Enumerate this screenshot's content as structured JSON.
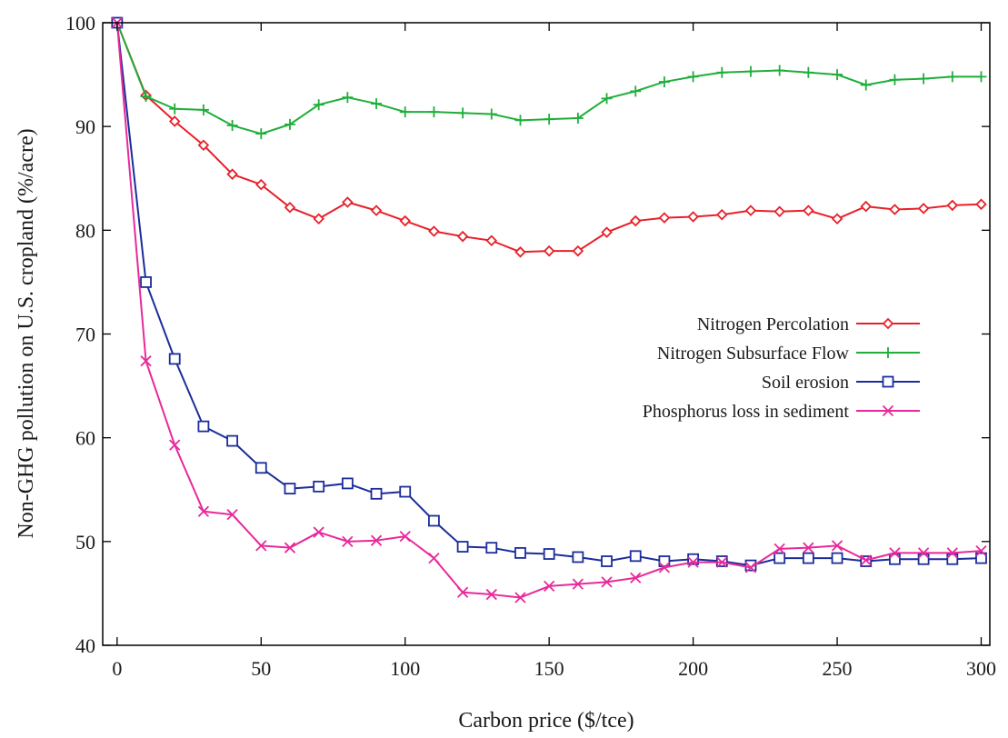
{
  "chart_data": {
    "type": "line",
    "title": "",
    "xlabel": "Carbon price ($/tce)",
    "ylabel": "Non-GHG pollution on U.S. cropland (%/acre)",
    "xlim": [
      -5,
      303
    ],
    "ylim": [
      40,
      100
    ],
    "xticks": [
      0,
      50,
      100,
      150,
      200,
      250,
      300
    ],
    "yticks": [
      40,
      50,
      60,
      70,
      80,
      90,
      100
    ],
    "grid": false,
    "legend_position": "right-middle",
    "x": [
      0,
      10,
      20,
      30,
      40,
      50,
      60,
      70,
      80,
      90,
      100,
      110,
      120,
      130,
      140,
      150,
      160,
      170,
      180,
      190,
      200,
      210,
      220,
      230,
      240,
      250,
      260,
      270,
      280,
      290,
      300
    ],
    "series": [
      {
        "name": "Nitrogen Percolation",
        "color": "#e8202a",
        "marker": "diamond",
        "values": [
          100,
          93.0,
          90.5,
          88.2,
          85.4,
          84.4,
          82.2,
          81.1,
          82.7,
          81.9,
          80.9,
          79.9,
          79.4,
          79.0,
          77.9,
          78.0,
          78.0,
          79.8,
          80.9,
          81.2,
          81.3,
          81.5,
          81.9,
          81.8,
          81.9,
          81.1,
          82.3,
          82.0,
          82.1,
          82.4,
          82.5
        ]
      },
      {
        "name": "Nitrogen Subsurface Flow",
        "color": "#1fae3a",
        "marker": "plus",
        "values": [
          100,
          92.9,
          91.7,
          91.6,
          90.1,
          89.3,
          90.2,
          92.1,
          92.8,
          92.2,
          91.4,
          91.4,
          91.3,
          91.2,
          90.6,
          90.7,
          90.8,
          92.7,
          93.4,
          94.3,
          94.8,
          95.2,
          95.3,
          95.4,
          95.2,
          95.0,
          94.0,
          94.5,
          94.6,
          94.8,
          94.8
        ]
      },
      {
        "name": "Soil erosion",
        "color": "#1b2d9a",
        "marker": "square",
        "values": [
          100,
          75.0,
          67.6,
          61.1,
          59.7,
          57.1,
          55.1,
          55.3,
          55.6,
          54.6,
          54.8,
          52.0,
          49.5,
          49.4,
          48.9,
          48.8,
          48.5,
          48.1,
          48.6,
          48.1,
          48.3,
          48.1,
          47.7,
          48.4,
          48.4,
          48.4,
          48.1,
          48.3,
          48.3,
          48.3,
          48.4
        ]
      },
      {
        "name": "Phosphorus loss in sediment",
        "color": "#e8299b",
        "marker": "x",
        "values": [
          100,
          67.4,
          59.3,
          52.9,
          52.6,
          49.6,
          49.4,
          50.9,
          50.0,
          50.1,
          50.5,
          48.4,
          45.1,
          44.9,
          44.6,
          45.7,
          45.9,
          46.1,
          46.5,
          47.5,
          48.0,
          48.0,
          47.5,
          49.3,
          49.4,
          49.6,
          48.2,
          48.9,
          48.9,
          48.9,
          49.1
        ]
      }
    ]
  }
}
